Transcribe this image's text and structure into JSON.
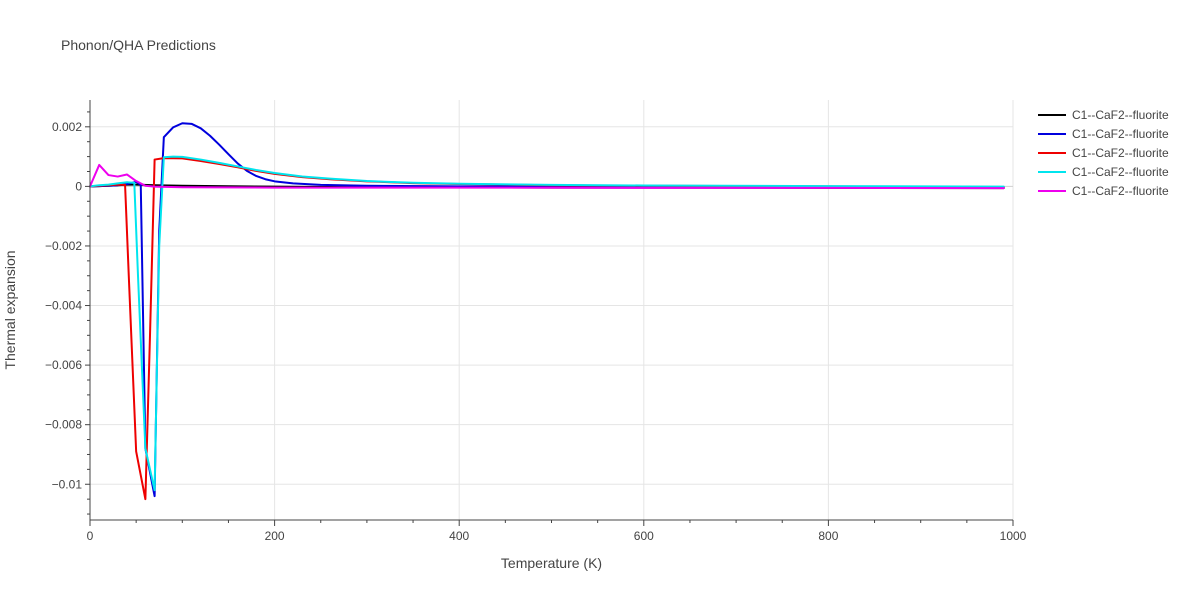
{
  "chart_data": {
    "type": "line",
    "title": "Phonon/QHA Predictions",
    "xlabel": "Temperature (K)",
    "ylabel": "Thermal expansion",
    "xlim": [
      0,
      1000
    ],
    "ylim": [
      -0.0112,
      0.0029
    ],
    "x_ticks": [
      0,
      200,
      400,
      600,
      800,
      1000
    ],
    "x_tick_labels": [
      "0",
      "200",
      "400",
      "600",
      "800",
      "1000"
    ],
    "y_ticks": [
      0.002,
      0,
      -0.002,
      -0.004,
      -0.006,
      -0.008,
      -0.01
    ],
    "y_tick_labels": [
      "0.002",
      "0",
      "−0.002",
      "−0.004",
      "−0.006",
      "−0.008",
      "−0.01"
    ],
    "grid": true,
    "legend_position": "top-right",
    "series": [
      {
        "name": "C1--CaF2--fluorite",
        "color": "#000000",
        "points": [
          [
            0,
            0
          ],
          [
            10,
            1e-05
          ],
          [
            20,
            2e-05
          ],
          [
            30,
            4e-05
          ],
          [
            40,
            6e-05
          ],
          [
            50,
            6e-05
          ],
          [
            70,
            4e-05
          ],
          [
            100,
            2e-05
          ],
          [
            150,
            5e-06
          ],
          [
            200,
            -1e-05
          ],
          [
            300,
            -3e-05
          ],
          [
            500,
            -4e-05
          ],
          [
            800,
            -5e-05
          ],
          [
            990,
            -6e-05
          ]
        ]
      },
      {
        "name": "C1--CaF2--fluorite",
        "color": "#0000dd",
        "points": [
          [
            0,
            0
          ],
          [
            10,
            1e-05
          ],
          [
            20,
            2e-05
          ],
          [
            30,
            4e-05
          ],
          [
            40,
            8e-05
          ],
          [
            50,
            0.00015
          ],
          [
            55,
            5e-05
          ],
          [
            60,
            -0.0088
          ],
          [
            70,
            -0.0104
          ],
          [
            75,
            -0.0015
          ],
          [
            80,
            0.00165
          ],
          [
            90,
            0.00198
          ],
          [
            100,
            0.00212
          ],
          [
            110,
            0.0021
          ],
          [
            120,
            0.00195
          ],
          [
            130,
            0.0017
          ],
          [
            140,
            0.0014
          ],
          [
            150,
            0.00108
          ],
          [
            160,
            0.00077
          ],
          [
            170,
            0.00052
          ],
          [
            180,
            0.00035
          ],
          [
            190,
            0.00024
          ],
          [
            200,
            0.00017
          ],
          [
            220,
            0.0001
          ],
          [
            250,
            5e-05
          ],
          [
            300,
            2e-05
          ],
          [
            400,
            0
          ],
          [
            600,
            -2e-05
          ],
          [
            800,
            -3e-05
          ],
          [
            990,
            -4e-05
          ]
        ]
      },
      {
        "name": "C1--CaF2--fluorite",
        "color": "#ee0000",
        "points": [
          [
            0,
            0
          ],
          [
            10,
            2e-05
          ],
          [
            20,
            4e-05
          ],
          [
            30,
            6e-05
          ],
          [
            38,
            5e-05
          ],
          [
            42,
            -0.003
          ],
          [
            50,
            -0.0089
          ],
          [
            60,
            -0.0105
          ],
          [
            65,
            -0.005
          ],
          [
            70,
            0.0009
          ],
          [
            80,
            0.00095
          ],
          [
            100,
            0.00094
          ],
          [
            120,
            0.00085
          ],
          [
            140,
            0.00075
          ],
          [
            160,
            0.00064
          ],
          [
            180,
            0.00052
          ],
          [
            200,
            0.00042
          ],
          [
            230,
            0.00031
          ],
          [
            260,
            0.00024
          ],
          [
            300,
            0.00017
          ],
          [
            350,
            0.00011
          ],
          [
            400,
            8e-05
          ],
          [
            500,
            4e-05
          ],
          [
            600,
            2e-05
          ],
          [
            800,
            0
          ],
          [
            990,
            -2e-05
          ]
        ]
      },
      {
        "name": "C1--CaF2--fluorite",
        "color": "#00e5ee",
        "points": [
          [
            0,
            0
          ],
          [
            10,
            4e-05
          ],
          [
            20,
            6e-05
          ],
          [
            30,
            0.0001
          ],
          [
            40,
            0.00014
          ],
          [
            48,
            0.00012
          ],
          [
            52,
            -0.003
          ],
          [
            60,
            -0.0088
          ],
          [
            70,
            -0.0102
          ],
          [
            75,
            -0.002
          ],
          [
            80,
            0.00098
          ],
          [
            90,
            0.001
          ],
          [
            100,
            0.00099
          ],
          [
            120,
            0.0009
          ],
          [
            140,
            0.00079
          ],
          [
            160,
            0.00067
          ],
          [
            180,
            0.00055
          ],
          [
            200,
            0.00045
          ],
          [
            230,
            0.00033
          ],
          [
            260,
            0.00026
          ],
          [
            300,
            0.00018
          ],
          [
            350,
            0.00012
          ],
          [
            400,
            9e-05
          ],
          [
            500,
            5e-05
          ],
          [
            600,
            3e-05
          ],
          [
            800,
            1e-05
          ],
          [
            990,
            -1e-05
          ]
        ]
      },
      {
        "name": "C1--CaF2--fluorite",
        "color": "#ee00ee",
        "points": [
          [
            0,
            0
          ],
          [
            10,
            0.00072
          ],
          [
            20,
            0.00038
          ],
          [
            30,
            0.00033
          ],
          [
            40,
            0.0004
          ],
          [
            50,
            0.00018
          ],
          [
            60,
            2e-05
          ],
          [
            70,
            -1e-05
          ],
          [
            100,
            -3e-05
          ],
          [
            200,
            -4e-05
          ],
          [
            400,
            -4e-05
          ],
          [
            600,
            -5e-05
          ],
          [
            800,
            -5e-05
          ],
          [
            990,
            -6e-05
          ]
        ]
      }
    ]
  }
}
